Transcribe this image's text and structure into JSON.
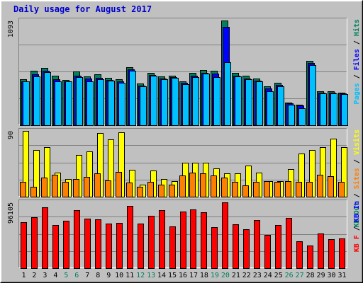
{
  "chart_data": {
    "type": "bar",
    "title": "Daily usage for August 2017",
    "colors": {
      "title": "#0000cc",
      "frame_light": "#ffffff",
      "frame_mid": "#c0c0c0",
      "frame_dark": "#808080",
      "plot_bg": "#c0c0c0",
      "hits": "#00805c",
      "files": "#0000ff",
      "pages": "#00c0ff",
      "visits": "#ffff00",
      "sites": "#ff8000",
      "kbytes": "#ff0000",
      "weekend_day": "#00805c",
      "weekday_day": "#000000"
    },
    "categories": [
      "1",
      "2",
      "3",
      "4",
      "5",
      "6",
      "7",
      "8",
      "9",
      "10",
      "11",
      "12",
      "13",
      "14",
      "15",
      "16",
      "17",
      "18",
      "19",
      "20",
      "21",
      "22",
      "23",
      "24",
      "25",
      "26",
      "27",
      "28",
      "29",
      "30",
      "31"
    ],
    "weekend_days": [
      "5",
      "6",
      "12",
      "13",
      "19",
      "20",
      "26",
      "27"
    ],
    "panels": [
      {
        "id": "hits-panel",
        "max_label": "1093",
        "ymax": 1093,
        "legend": [
          {
            "text": "Hits",
            "color": "#00805c"
          },
          {
            "text": "Files",
            "color": "#0000ff"
          },
          {
            "text": "Pages",
            "color": "#00c0ff"
          }
        ],
        "series": [
          {
            "name": "Hits",
            "color": "#00805c",
            "values": [
              480,
              565,
              600,
              520,
              475,
              560,
              510,
              530,
              495,
              480,
              605,
              435,
              550,
              510,
              520,
              460,
              545,
              575,
              565,
              1093,
              550,
              515,
              490,
              405,
              445,
              240,
              215,
              670,
              355,
              355,
              340
            ]
          },
          {
            "name": "Files",
            "color": "#0000ff",
            "values": [
              460,
              530,
              565,
              480,
              455,
              520,
              485,
              495,
              470,
              460,
              580,
              410,
              525,
              485,
              500,
              440,
              520,
              550,
              540,
              1025,
              515,
              490,
              465,
              385,
              420,
              230,
              205,
              650,
              340,
              340,
              330
            ]
          },
          {
            "name": "Pages",
            "color": "#00c0ff",
            "values": [
              455,
              510,
              555,
              455,
              455,
              500,
              460,
              480,
              465,
              445,
              570,
              405,
              520,
              480,
              495,
              430,
              505,
              540,
              505,
              660,
              510,
              480,
              455,
              355,
              405,
              215,
              180,
              625,
              330,
              335,
              325
            ]
          }
        ]
      },
      {
        "id": "visits-panel",
        "max_label": "90",
        "ymax": 90,
        "legend": [
          {
            "text": "Visits",
            "color": "#ffff00"
          },
          {
            "text": "Sites",
            "color": "#ff8000"
          },
          {
            "text": "KB Out",
            "color": "#00805c"
          }
        ],
        "series": [
          {
            "name": "Visits",
            "color": "#ffff00",
            "values": [
              90,
              64,
              68,
              33,
              24,
              57,
              62,
              87,
              78,
              88,
              37,
              16,
              36,
              24,
              21,
              46,
              46,
              46,
              39,
              32,
              32,
              43,
              33,
              21,
              21,
              38,
              59,
              64,
              68,
              79,
              68
            ]
          },
          {
            "name": "Sites",
            "color": "#ff8000",
            "values": [
              20,
              14,
              26,
              30,
              20,
              24,
              27,
              32,
              22,
              34,
              19,
              14,
              20,
              16,
              16,
              29,
              33,
              32,
              29,
              26,
              20,
              15,
              20,
              21,
              20,
              21,
              20,
              20,
              30,
              28,
              20
            ]
          }
        ]
      },
      {
        "id": "kbytes-panel",
        "max_label": "96105",
        "ymax": 96105,
        "legend": [
          {
            "text": "KB In",
            "color": "#0000ff"
          },
          {
            "text": "KB F",
            "color": "#ff0000"
          }
        ],
        "series": [
          {
            "name": "KB F",
            "color": "#ff0000",
            "values": [
              67300,
              74400,
              89300,
              63200,
              69600,
              84300,
              72400,
              71100,
              64600,
              66000,
              90500,
              65600,
              76000,
              84700,
              60600,
              82900,
              86200,
              81400,
              60400,
              96105,
              63800,
              56700,
              70200,
              48800,
              63300,
              73500,
              39400,
              33400,
              50400,
              42100,
              43600
            ]
          }
        ]
      }
    ]
  }
}
